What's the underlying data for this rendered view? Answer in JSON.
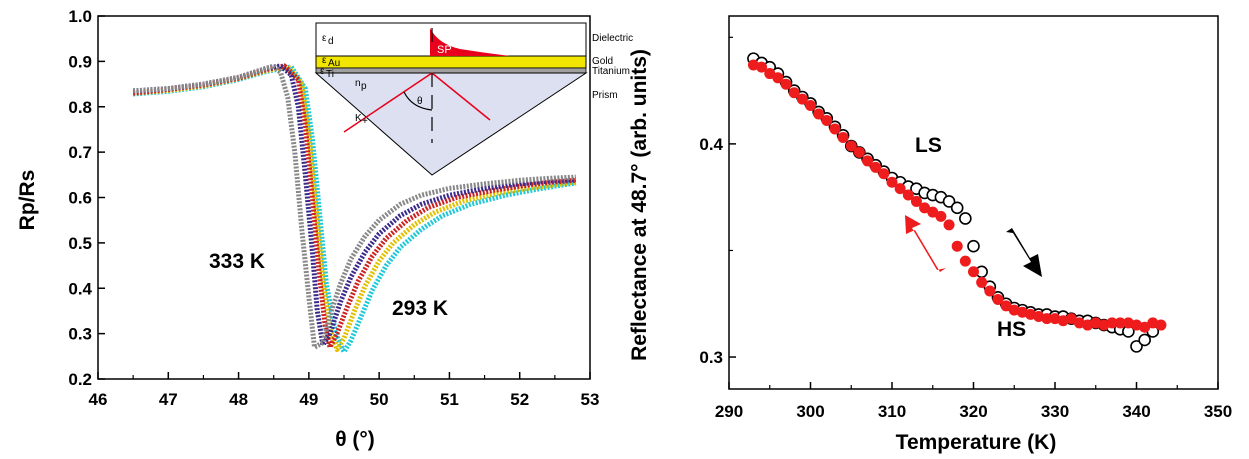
{
  "chart_data": [
    {
      "type": "scatter",
      "xlabel": "θ (°)",
      "ylabel": "Rp/Rs",
      "xlim": [
        46,
        53
      ],
      "ylim": [
        0.2,
        1.0
      ],
      "xticks": [
        "46",
        "47",
        "48",
        "49",
        "50",
        "51",
        "52",
        "53"
      ],
      "yticks": [
        "0.2",
        "0.3",
        "0.4",
        "0.5",
        "0.6",
        "0.7",
        "0.8",
        "0.9",
        "1.0"
      ],
      "annotations": [
        "333 K",
        "293 K"
      ],
      "series": [
        {
          "color": "#888888",
          "min_x": 49.08,
          "min_y": 0.27,
          "points": [
            [
              46.5,
              0.835
            ],
            [
              47.0,
              0.84
            ],
            [
              47.5,
              0.85
            ],
            [
              48.0,
              0.865
            ],
            [
              48.4,
              0.885
            ],
            [
              48.5,
              0.89
            ],
            [
              48.6,
              0.875
            ],
            [
              48.7,
              0.82
            ],
            [
              48.8,
              0.7
            ],
            [
              48.9,
              0.53
            ],
            [
              49.0,
              0.38
            ],
            [
              49.08,
              0.27
            ],
            [
              49.2,
              0.28
            ],
            [
              49.3,
              0.34
            ],
            [
              49.45,
              0.41
            ],
            [
              49.6,
              0.465
            ],
            [
              49.8,
              0.515
            ],
            [
              50.0,
              0.55
            ],
            [
              50.3,
              0.585
            ],
            [
              50.6,
              0.605
            ],
            [
              51.0,
              0.62
            ],
            [
              51.5,
              0.63
            ],
            [
              52.0,
              0.638
            ],
            [
              52.4,
              0.642
            ],
            [
              52.8,
              0.645
            ]
          ]
        },
        {
          "color": "#3b2a8a",
          "min_x": 49.2,
          "min_y": 0.275,
          "points": [
            [
              46.5,
              0.835
            ],
            [
              47.0,
              0.84
            ],
            [
              47.5,
              0.85
            ],
            [
              48.0,
              0.865
            ],
            [
              48.4,
              0.885
            ],
            [
              48.6,
              0.89
            ],
            [
              48.75,
              0.87
            ],
            [
              48.85,
              0.8
            ],
            [
              48.95,
              0.65
            ],
            [
              49.05,
              0.48
            ],
            [
              49.12,
              0.35
            ],
            [
              49.2,
              0.275
            ],
            [
              49.3,
              0.3
            ],
            [
              49.45,
              0.37
            ],
            [
              49.6,
              0.425
            ],
            [
              49.8,
              0.48
            ],
            [
              50.0,
              0.52
            ],
            [
              50.3,
              0.56
            ],
            [
              50.6,
              0.585
            ],
            [
              51.0,
              0.605
            ],
            [
              51.5,
              0.62
            ],
            [
              52.0,
              0.63
            ],
            [
              52.4,
              0.636
            ],
            [
              52.8,
              0.64
            ]
          ]
        },
        {
          "color": "#cc2222",
          "min_x": 49.3,
          "min_y": 0.27,
          "points": [
            [
              46.5,
              0.83
            ],
            [
              47.0,
              0.838
            ],
            [
              47.5,
              0.848
            ],
            [
              48.0,
              0.863
            ],
            [
              48.4,
              0.882
            ],
            [
              48.65,
              0.89
            ],
            [
              48.85,
              0.86
            ],
            [
              48.95,
              0.76
            ],
            [
              49.05,
              0.6
            ],
            [
              49.15,
              0.43
            ],
            [
              49.23,
              0.32
            ],
            [
              49.3,
              0.27
            ],
            [
              49.4,
              0.3
            ],
            [
              49.55,
              0.36
            ],
            [
              49.7,
              0.415
            ],
            [
              49.9,
              0.47
            ],
            [
              50.1,
              0.51
            ],
            [
              50.4,
              0.55
            ],
            [
              50.7,
              0.578
            ],
            [
              51.1,
              0.6
            ],
            [
              51.6,
              0.615
            ],
            [
              52.0,
              0.625
            ],
            [
              52.4,
              0.633
            ],
            [
              52.8,
              0.638
            ]
          ]
        },
        {
          "color": "#e0c000",
          "min_x": 49.4,
          "min_y": 0.265,
          "points": [
            [
              46.5,
              0.83
            ],
            [
              47.0,
              0.836
            ],
            [
              47.5,
              0.846
            ],
            [
              48.0,
              0.862
            ],
            [
              48.4,
              0.88
            ],
            [
              48.7,
              0.889
            ],
            [
              48.9,
              0.85
            ],
            [
              49.0,
              0.74
            ],
            [
              49.1,
              0.58
            ],
            [
              49.2,
              0.42
            ],
            [
              49.3,
              0.31
            ],
            [
              49.4,
              0.265
            ],
            [
              49.5,
              0.29
            ],
            [
              49.65,
              0.35
            ],
            [
              49.8,
              0.405
            ],
            [
              50.0,
              0.46
            ],
            [
              50.2,
              0.5
            ],
            [
              50.5,
              0.54
            ],
            [
              50.8,
              0.568
            ],
            [
              51.2,
              0.592
            ],
            [
              51.7,
              0.61
            ],
            [
              52.1,
              0.62
            ],
            [
              52.5,
              0.628
            ],
            [
              52.8,
              0.634
            ]
          ]
        },
        {
          "color": "#20c8d8",
          "min_x": 49.5,
          "min_y": 0.26,
          "points": [
            [
              46.5,
              0.828
            ],
            [
              47.0,
              0.834
            ],
            [
              47.5,
              0.844
            ],
            [
              48.0,
              0.86
            ],
            [
              48.4,
              0.878
            ],
            [
              48.75,
              0.888
            ],
            [
              48.95,
              0.84
            ],
            [
              49.05,
              0.73
            ],
            [
              49.15,
              0.57
            ],
            [
              49.25,
              0.41
            ],
            [
              49.38,
              0.3
            ],
            [
              49.5,
              0.26
            ],
            [
              49.6,
              0.285
            ],
            [
              49.75,
              0.34
            ],
            [
              49.9,
              0.395
            ],
            [
              50.1,
              0.45
            ],
            [
              50.3,
              0.49
            ],
            [
              50.6,
              0.53
            ],
            [
              50.9,
              0.56
            ],
            [
              51.3,
              0.585
            ],
            [
              51.8,
              0.605
            ],
            [
              52.2,
              0.617
            ],
            [
              52.5,
              0.625
            ],
            [
              52.8,
              0.632
            ]
          ]
        }
      ],
      "inset": {
        "layers": [
          "Dielectric",
          "Gold",
          "Titanium",
          "Prism"
        ],
        "symbols": {
          "eps_d": "ε",
          "eps_d_sub": "d",
          "eps_au": "ε",
          "eps_au_sub": "Au",
          "eps_ti": "ε",
          "eps_ti_sub": "Ti",
          "n_p": "n",
          "n_p_sub": "p",
          "theta": "θ",
          "k": "K",
          "k_sub": "+"
        },
        "sp_label": "SP",
        "colors": {
          "gold": "#f2e600",
          "sp": "#e8001c",
          "beam": "#e8001c",
          "prism": "#dde0f0",
          "titanium": "#a0a0a0"
        }
      }
    },
    {
      "type": "scatter",
      "xlabel": "Temperature (K)",
      "ylabel": "Reflectance at 48.7° (arb. units)",
      "xlim": [
        290,
        350
      ],
      "ylim": [
        0.285,
        0.46
      ],
      "xticks": [
        "290",
        "300",
        "310",
        "320",
        "330",
        "340",
        "350"
      ],
      "yticks": [
        "0.3",
        "0.4"
      ],
      "annotations": [
        "LS",
        "HS"
      ],
      "series": [
        {
          "marker": "open circle",
          "color": "#000000",
          "points": [
            [
              293,
              0.44
            ],
            [
              294,
              0.438
            ],
            [
              295,
              0.436
            ],
            [
              296,
              0.433
            ],
            [
              297,
              0.429
            ],
            [
              298,
              0.425
            ],
            [
              299,
              0.422
            ],
            [
              300,
              0.419
            ],
            [
              301,
              0.415
            ],
            [
              302,
              0.412
            ],
            [
              303,
              0.408
            ],
            [
              304,
              0.404
            ],
            [
              305,
              0.399
            ],
            [
              306,
              0.396
            ],
            [
              307,
              0.393
            ],
            [
              308,
              0.39
            ],
            [
              309,
              0.387
            ],
            [
              310,
              0.384
            ],
            [
              311,
              0.382
            ],
            [
              312,
              0.38
            ],
            [
              313,
              0.379
            ],
            [
              314,
              0.377
            ],
            [
              315,
              0.376
            ],
            [
              316,
              0.375
            ],
            [
              317,
              0.373
            ],
            [
              318,
              0.37
            ],
            [
              319,
              0.365
            ],
            [
              320,
              0.352
            ],
            [
              321,
              0.34
            ],
            [
              322,
              0.333
            ],
            [
              323,
              0.328
            ],
            [
              324,
              0.325
            ],
            [
              325,
              0.323
            ],
            [
              326,
              0.322
            ],
            [
              327,
              0.321
            ],
            [
              328,
              0.32
            ],
            [
              329,
              0.32
            ],
            [
              330,
              0.319
            ],
            [
              331,
              0.319
            ],
            [
              332,
              0.318
            ],
            [
              333,
              0.317
            ],
            [
              334,
              0.317
            ],
            [
              335,
              0.316
            ],
            [
              336,
              0.315
            ],
            [
              337,
              0.314
            ],
            [
              338,
              0.313
            ],
            [
              339,
              0.312
            ],
            [
              340,
              0.305
            ],
            [
              341,
              0.308
            ],
            [
              342,
              0.312
            ]
          ]
        },
        {
          "marker": "filled circle",
          "color": "#ee1c1c",
          "points": [
            [
              293,
              0.437
            ],
            [
              294,
              0.436
            ],
            [
              295,
              0.433
            ],
            [
              296,
              0.431
            ],
            [
              297,
              0.428
            ],
            [
              298,
              0.424
            ],
            [
              299,
              0.421
            ],
            [
              300,
              0.418
            ],
            [
              301,
              0.414
            ],
            [
              302,
              0.411
            ],
            [
              303,
              0.407
            ],
            [
              304,
              0.403
            ],
            [
              305,
              0.399
            ],
            [
              306,
              0.396
            ],
            [
              307,
              0.392
            ],
            [
              308,
              0.389
            ],
            [
              309,
              0.386
            ],
            [
              310,
              0.382
            ],
            [
              311,
              0.379
            ],
            [
              312,
              0.376
            ],
            [
              313,
              0.373
            ],
            [
              314,
              0.37
            ],
            [
              315,
              0.368
            ],
            [
              316,
              0.366
            ],
            [
              317,
              0.362
            ],
            [
              318,
              0.352
            ],
            [
              319,
              0.345
            ],
            [
              320,
              0.34
            ],
            [
              321,
              0.335
            ],
            [
              322,
              0.331
            ],
            [
              323,
              0.327
            ],
            [
              324,
              0.324
            ],
            [
              325,
              0.322
            ],
            [
              326,
              0.321
            ],
            [
              327,
              0.32
            ],
            [
              328,
              0.319
            ],
            [
              329,
              0.318
            ],
            [
              330,
              0.318
            ],
            [
              331,
              0.317
            ],
            [
              332,
              0.318
            ],
            [
              333,
              0.316
            ],
            [
              334,
              0.315
            ],
            [
              335,
              0.316
            ],
            [
              336,
              0.315
            ],
            [
              337,
              0.316
            ],
            [
              338,
              0.316
            ],
            [
              339,
              0.316
            ],
            [
              340,
              0.315
            ],
            [
              341,
              0.314
            ],
            [
              342,
              0.316
            ],
            [
              343,
              0.315
            ]
          ]
        }
      ],
      "arrows": {
        "cooling_color": "#ee1c1c",
        "heating_color": "#000000"
      }
    }
  ]
}
